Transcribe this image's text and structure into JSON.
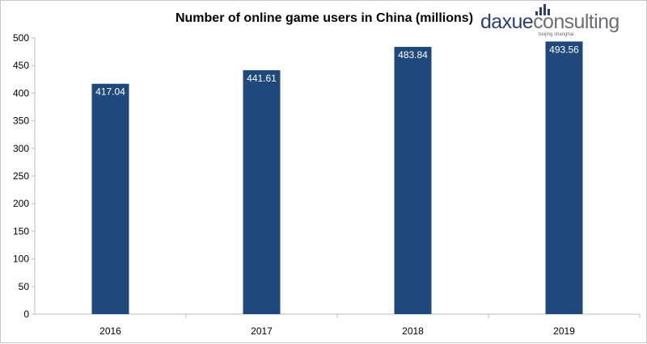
{
  "brand": {
    "name_primary": "daxue",
    "name_secondary": "consulting",
    "tagline": "beijing shanghai",
    "color": "#2b3f73",
    "accent_color": "#6d6e71"
  },
  "chart_data": {
    "type": "bar",
    "title": "Number of online game users in China (millions)",
    "xlabel": "",
    "ylabel": "",
    "categories": [
      "2016",
      "2017",
      "2018",
      "2019"
    ],
    "values": [
      417.04,
      441.61,
      483.84,
      493.56
    ],
    "value_labels": [
      "417.04",
      "441.61",
      "483.84",
      "493.56"
    ],
    "ylim": [
      0,
      500
    ],
    "yticks": [
      0,
      50,
      100,
      150,
      200,
      250,
      300,
      350,
      400,
      450,
      500
    ],
    "grid": false,
    "legend": "none",
    "bar_color": "#1f497d",
    "label_color": "#ffffff"
  }
}
